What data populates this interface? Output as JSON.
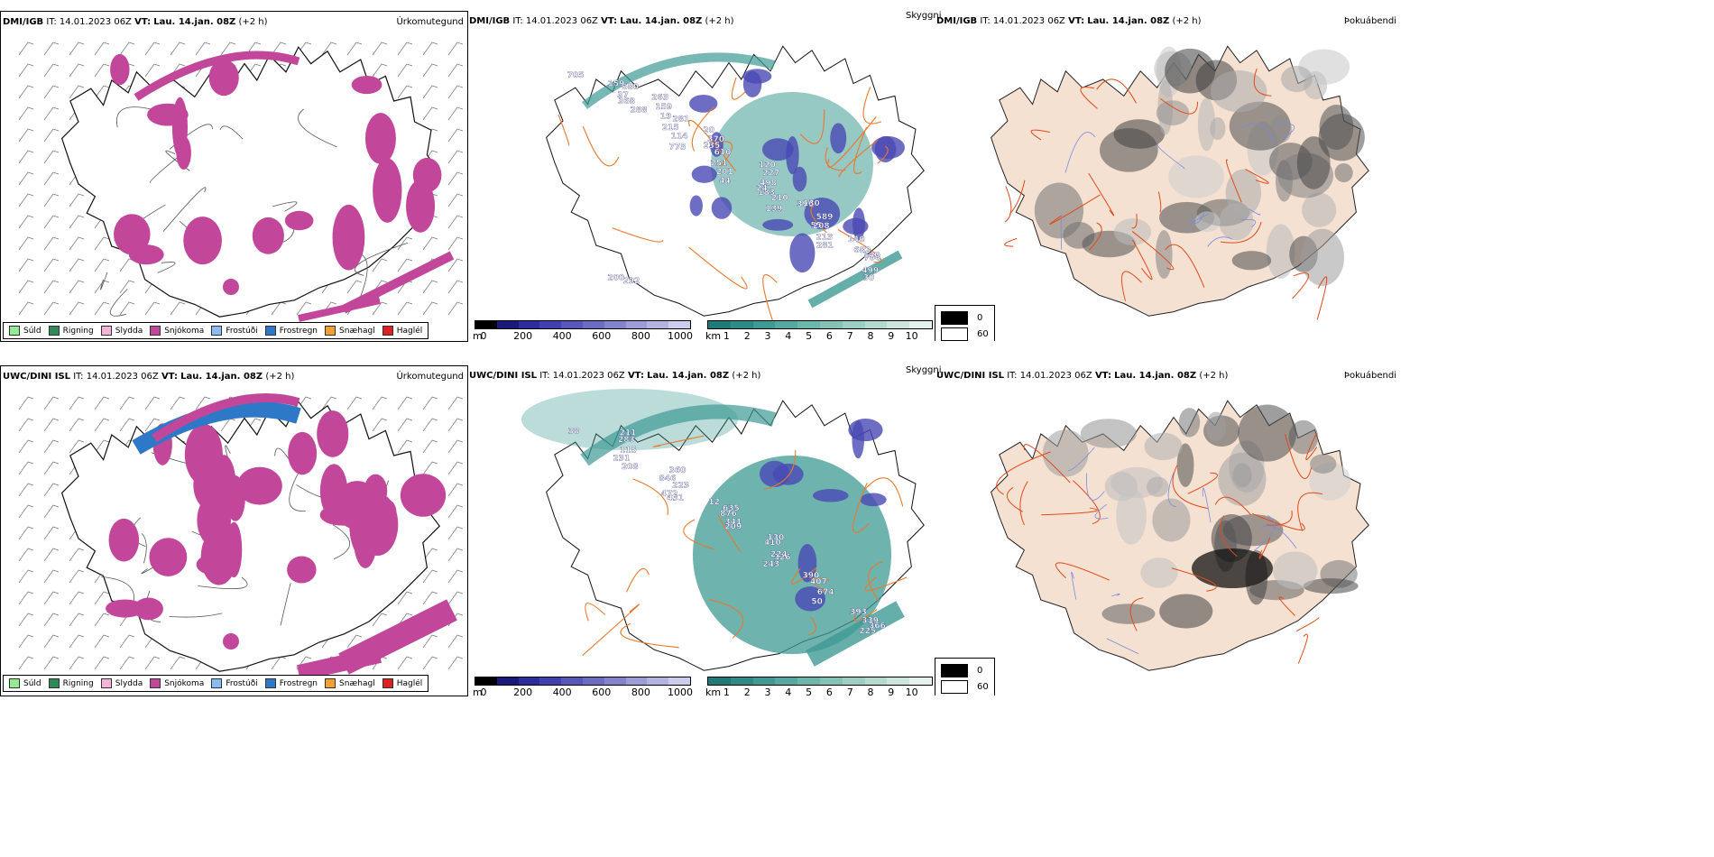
{
  "rows": [
    {
      "precip": {
        "model": "DMI/IGB",
        "it_label": "IT:",
        "it": "14.01.2023 06Z",
        "vt_label": "VT:",
        "vt": "Lau. 14.jan. 08Z",
        "lead": "(+2 h)",
        "title": "Úrkomutegund"
      },
      "cloud": {
        "model": "DMI/IGB",
        "it_label": "IT:",
        "it": "14.01.2023 06Z",
        "vt_label": "VT:",
        "vt": "Lau. 14.jan. 08Z",
        "lead": "(+2 h)",
        "title": "Skyggni",
        "labels": [
          "705",
          "288",
          "775",
          "44",
          "139",
          "281",
          "30",
          "368",
          "114",
          "201",
          "210",
          "213",
          "499",
          "37",
          "215",
          "251",
          "183",
          "55",
          "706",
          "680",
          "281",
          "610",
          "24",
          "208",
          "140",
          "159",
          "19",
          "235",
          "498",
          "589",
          "682",
          "292",
          "159",
          "370",
          "227",
          "396",
          "140",
          "200",
          "263",
          "20",
          "120",
          "130"
        ]
      },
      "fog": {
        "model": "DMI/IGB",
        "it_label": "IT:",
        "it": "14.01.2023 06Z",
        "vt_label": "VT:",
        "vt": "Lau. 14.jan. 08Z",
        "lead": "(+2 h)",
        "title": "Þokuábendi"
      }
    },
    {
      "precip": {
        "model": "UWC/DINI ISL",
        "it_label": "IT:",
        "it": "14.01.2023 06Z",
        "vt_label": "VT:",
        "vt": "Lau. 14.jan. 08Z",
        "lead": "(+2 h)",
        "title": "Úrkomutegund"
      },
      "cloud": {
        "model": "UWC/DINI ISL",
        "it_label": "IT:",
        "it": "14.01.2023 06Z",
        "vt_label": "VT:",
        "vt": "Lau. 14.jan. 08Z",
        "lead": "(+2 h)",
        "title": "Skyggni",
        "labels": [
          "38",
          "208",
          "431",
          "209",
          "243",
          "50",
          "225",
          "231",
          "472",
          "341",
          "326",
          "674",
          "366",
          "115",
          "223",
          "876",
          "224",
          "407",
          "339",
          "283",
          "846",
          "635",
          "410",
          "390",
          "393",
          "211",
          "360",
          "12",
          "130"
        ]
      },
      "fog": {
        "model": "UWC/DINI ISL",
        "it_label": "IT:",
        "it": "14.01.2023 06Z",
        "vt_label": "VT:",
        "vt": "Lau. 14.jan. 08Z",
        "lead": "(+2 h)",
        "title": "Þokuábendi"
      }
    }
  ],
  "precip_legend": [
    {
      "label": "Súld",
      "color": "#90ee90"
    },
    {
      "label": "Rigning",
      "color": "#2e8b57"
    },
    {
      "label": "Slydda",
      "color": "#f4b6d8"
    },
    {
      "label": "Snjókoma",
      "color": "#c2479a"
    },
    {
      "label": "Frostúði",
      "color": "#87bdf0"
    },
    {
      "label": "Frostregn",
      "color": "#2e78c8"
    },
    {
      "label": "Snæhagl",
      "color": "#f5a030"
    },
    {
      "label": "Haglél",
      "color": "#e02020"
    }
  ],
  "height_bar": {
    "unit": "m",
    "ticks": [
      "0",
      "200",
      "400",
      "600",
      "800",
      "1000"
    ],
    "colors": [
      "#000000",
      "#1a1a7a",
      "#2c2c9e",
      "#4040b0",
      "#5656bb",
      "#6c6cc4",
      "#8484cc",
      "#9c9cd6",
      "#b4b4e0",
      "#ccccec"
    ]
  },
  "vis_bar": {
    "unit": "km",
    "ticks": [
      "1",
      "2",
      "3",
      "4",
      "5",
      "6",
      "7",
      "8",
      "9",
      "10"
    ],
    "colors": [
      "#1f7a78",
      "#2e8a86",
      "#3f9a94",
      "#55a8a0",
      "#6cb6ac",
      "#84c2b8",
      "#9ccec4",
      "#b4dad0",
      "#cce6de",
      "#e4f2ee"
    ]
  },
  "fog_legend": {
    "items": [
      {
        "label": "0",
        "color": "#000000"
      },
      {
        "label": "60",
        "color": "#ffffff"
      }
    ]
  },
  "colors": {
    "snow": "#c2479a",
    "freezing": "#2e78c8",
    "cloud_teal": "#3f9a94",
    "cloud_blue": "#4848b4",
    "roads": "#e8792a",
    "fog_land": "#f5e1d2"
  }
}
